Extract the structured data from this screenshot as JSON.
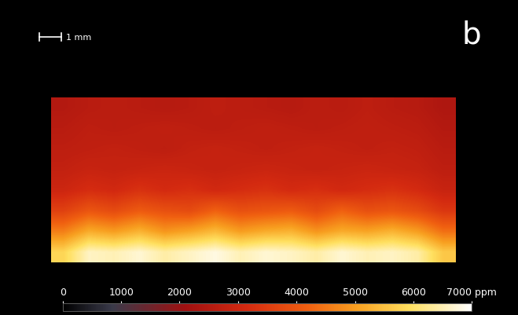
{
  "chart_data": {
    "type": "heatmap",
    "panel_label": "b",
    "scale_bar": "1 mm",
    "tick_labels": false,
    "cells": [
      [
        2500,
        2600,
        2650,
        2600,
        2550,
        2600,
        2700,
        2650,
        2600,
        2550,
        2650,
        2600,
        2700,
        2600,
        2550,
        2400
      ],
      [
        2600,
        2700,
        2650,
        2700,
        2750,
        2700,
        2650,
        2700,
        2750,
        2700,
        2650,
        2700,
        2750,
        2700,
        2650,
        2500
      ],
      [
        2700,
        2750,
        2800,
        2750,
        2700,
        2800,
        2850,
        2800,
        2750,
        2800,
        2850,
        2800,
        2750,
        2800,
        2750,
        2600
      ],
      [
        2800,
        2900,
        2850,
        2900,
        2950,
        2900,
        2850,
        2900,
        2950,
        2900,
        2850,
        2900,
        2950,
        2900,
        2850,
        2700
      ],
      [
        3000,
        3200,
        3100,
        3300,
        3150,
        3250,
        3100,
        3200,
        3300,
        3150,
        3250,
        3100,
        3200,
        3300,
        3150,
        2900
      ],
      [
        3600,
        4000,
        3800,
        4100,
        3900,
        3800,
        4200,
        3900,
        4000,
        4100,
        3800,
        4200,
        3900,
        4000,
        3800,
        3400
      ],
      [
        4600,
        5200,
        5000,
        5300,
        4900,
        5100,
        5400,
        5000,
        5200,
        5300,
        4900,
        5200,
        5100,
        5300,
        5000,
        4400
      ],
      [
        5800,
        6600,
        6500,
        6700,
        6400,
        6600,
        6800,
        6500,
        6700,
        6600,
        6400,
        6700,
        6500,
        6600,
        6400,
        5600
      ]
    ],
    "colorbar_range": [
      0,
      7000
    ],
    "colorbar_ticks": [
      0,
      1000,
      2000,
      3000,
      4000,
      5000,
      6000,
      {
        "value": 7000,
        "label": "7000 ppm"
      }
    ]
  }
}
